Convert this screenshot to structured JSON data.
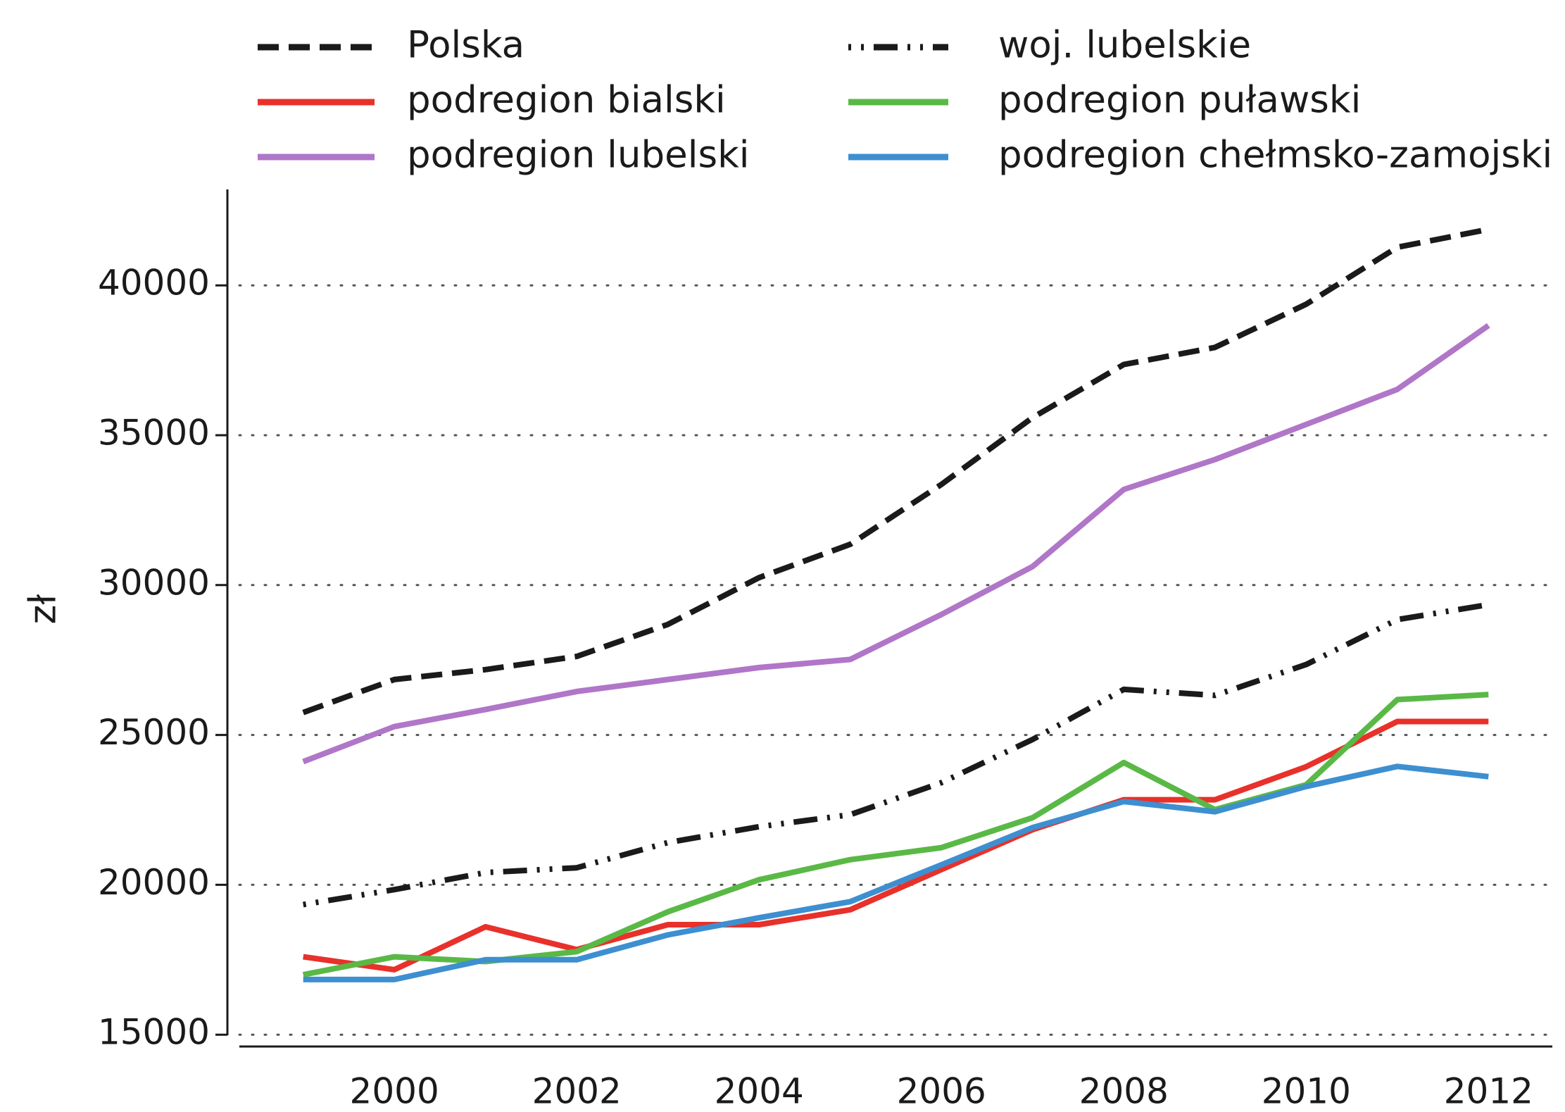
{
  "chart_data": {
    "type": "line",
    "x": [
      1999,
      2000,
      2001,
      2002,
      2003,
      2004,
      2005,
      2006,
      2007,
      2008,
      2009,
      2010,
      2011,
      2012
    ],
    "ylabel": "zł",
    "xlim": [
      1998.3,
      2012.7
    ],
    "xticks": [
      2000,
      2002,
      2004,
      2006,
      2008,
      2010,
      2012
    ],
    "ylim": [
      14700,
      43200
    ],
    "yticks": [
      15000,
      20000,
      25000,
      30000,
      35000,
      40000
    ],
    "grid": true,
    "series": [
      {
        "name": "Polska",
        "color": "#1a1a1a",
        "dash": "dashed",
        "values": [
          25750,
          26850,
          27180,
          27620,
          28690,
          30250,
          31360,
          33360,
          35590,
          37360,
          37930,
          39370,
          41270,
          41870
        ]
      },
      {
        "name": "woj. lubelskie",
        "color": "#1a1a1a",
        "dash": "dotdash",
        "values": [
          19340,
          19840,
          20410,
          20570,
          21410,
          21940,
          22340,
          23410,
          24850,
          26520,
          26320,
          27350,
          28850,
          29350
        ]
      },
      {
        "name": "podregion bialski",
        "color": "#e8312a",
        "dash": "solid",
        "values": [
          17600,
          17170,
          18600,
          17840,
          18670,
          18670,
          19170,
          20510,
          21840,
          22840,
          22840,
          23940,
          25450,
          25450
        ]
      },
      {
        "name": "podregion puławski",
        "color": "#5ab946",
        "dash": "solid",
        "values": [
          17000,
          17600,
          17440,
          17770,
          19100,
          20170,
          20840,
          21240,
          22240,
          24080,
          22510,
          23340,
          26180,
          26350
        ]
      },
      {
        "name": "podregion lubelski",
        "color": "#b076c8",
        "dash": "solid",
        "values": [
          24110,
          25280,
          25850,
          26450,
          26850,
          27250,
          27520,
          29020,
          30620,
          33190,
          34190,
          35360,
          36530,
          38660
        ]
      },
      {
        "name": "podregion chełmsko-zamojski",
        "color": "#3d8fd0",
        "dash": "solid",
        "values": [
          16840,
          16840,
          17500,
          17500,
          18330,
          18900,
          19440,
          20670,
          21910,
          22780,
          22440,
          23280,
          23950,
          23610
        ]
      }
    ]
  }
}
